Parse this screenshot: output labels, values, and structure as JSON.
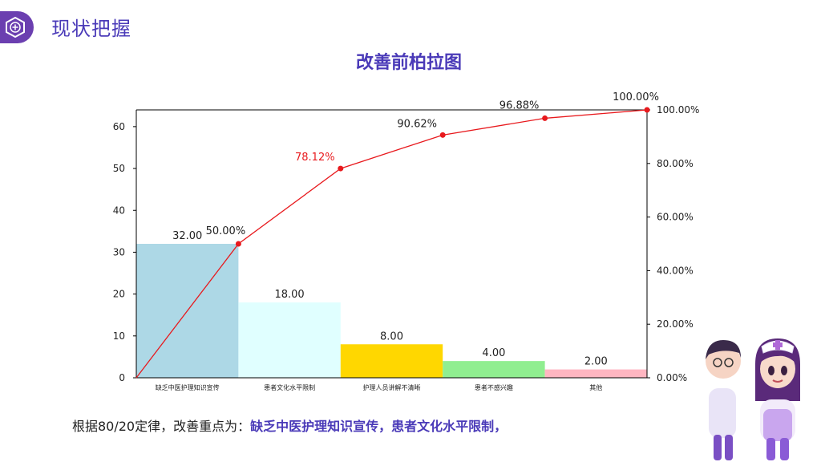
{
  "header": {
    "section_title": "现状把握",
    "badge_icon": "hexagon-plus-icon"
  },
  "colors": {
    "accent": "#4a3ab8",
    "badge": "#6b3fb0",
    "cumulative_line": "#e8191d"
  },
  "chart_data": {
    "type": "bar",
    "title": "改善前柏拉图",
    "categories": [
      "缺乏中医护理知识宣传",
      "患者文化水平限制",
      "护理人员讲解不清晰",
      "患者不感兴趣",
      "其他"
    ],
    "values": [
      32,
      18,
      8,
      4,
      2
    ],
    "value_labels": [
      "32.00",
      "18.00",
      "8.00",
      "4.00",
      "2.00"
    ],
    "bar_colors": [
      "#add8e6",
      "#e0ffff",
      "#ffd700",
      "#90ee90",
      "#ffb6c1"
    ],
    "cumulative_percent": [
      0,
      50.0,
      78.12,
      90.62,
      96.88,
      100.0
    ],
    "cumulative_labels": [
      "50.00%",
      "78.12%",
      "90.62%",
      "96.88%",
      "100.00%"
    ],
    "ylim": [
      0,
      64
    ],
    "yticks": [
      "0",
      "10",
      "20",
      "30",
      "40",
      "50",
      "60"
    ],
    "y2lim": [
      0,
      100
    ],
    "y2ticks": [
      "0.00%",
      "20.00%",
      "40.00%",
      "60.00%",
      "80.00%",
      "100.00%"
    ],
    "grid": false
  },
  "conclusion": {
    "prefix": "根据80/20定律，改善重点为：",
    "emphasis": "缺乏中医护理知识宣传，患者文化水平限制，"
  }
}
